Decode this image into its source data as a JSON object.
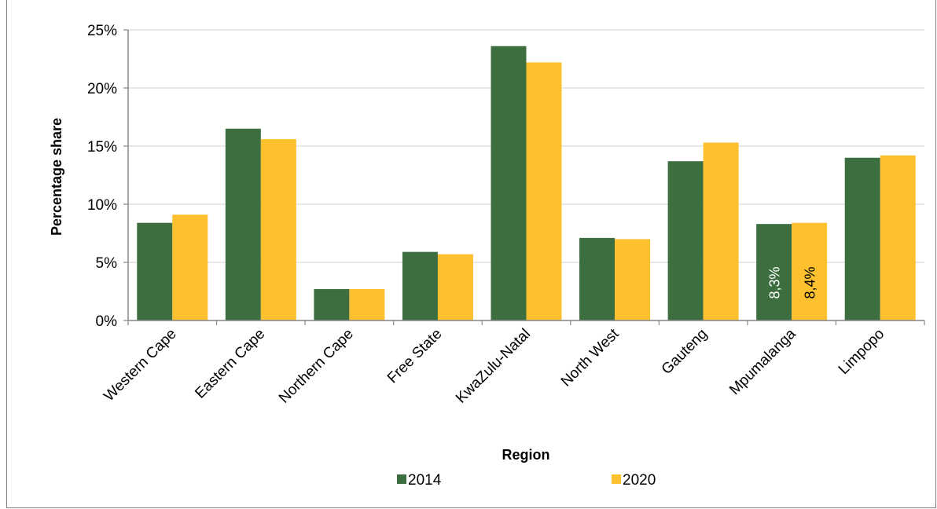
{
  "chart_data": {
    "type": "bar",
    "title": "",
    "xlabel": "Region",
    "ylabel": "Percentage share",
    "ylim": [
      0,
      25
    ],
    "yticks": [
      "0%",
      "5%",
      "10%",
      "15%",
      "20%",
      "25%"
    ],
    "grid": true,
    "legend_position": "bottom",
    "categories": [
      "Western Cape",
      "Eastern Cape",
      "Northern Cape",
      "Free State",
      "KwaZulu-Natal",
      "North West",
      "Gauteng",
      "Mpumalanga",
      "Limpopo"
    ],
    "series": [
      {
        "name": "2014",
        "color": "#3c6e3f",
        "values": [
          8.4,
          16.5,
          2.7,
          5.9,
          23.6,
          7.1,
          13.7,
          8.3,
          14.0
        ]
      },
      {
        "name": "2020",
        "color": "#fdc02f",
        "values": [
          9.1,
          15.6,
          2.7,
          5.7,
          22.2,
          7.0,
          15.3,
          8.4,
          14.2
        ]
      }
    ],
    "data_labels": [
      {
        "category": "Mpumalanga",
        "series": "2014",
        "text": "8,3%",
        "color": "#ffffff"
      },
      {
        "category": "Mpumalanga",
        "series": "2020",
        "text": "8,4%",
        "color": "#000000"
      }
    ]
  }
}
